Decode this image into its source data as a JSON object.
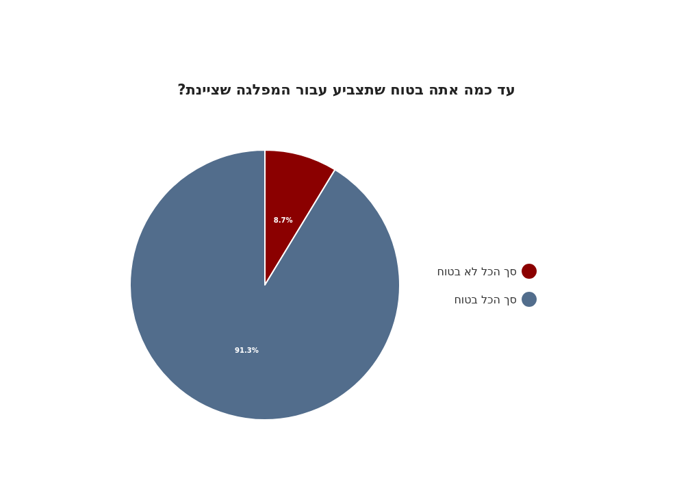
{
  "chart_data": {
    "type": "pie",
    "title": "עד כמה אתה בטוח שתצביע עבור המפלגה שציינת?",
    "categories": [
      "סך הכל לא בטוח",
      "סך הכל בטוח"
    ],
    "values": [
      8.7,
      91.3
    ],
    "colors": [
      "#8b0000",
      "#526d8c"
    ],
    "value_labels": [
      "8.7%",
      "91.3%"
    ],
    "legend": "right"
  }
}
